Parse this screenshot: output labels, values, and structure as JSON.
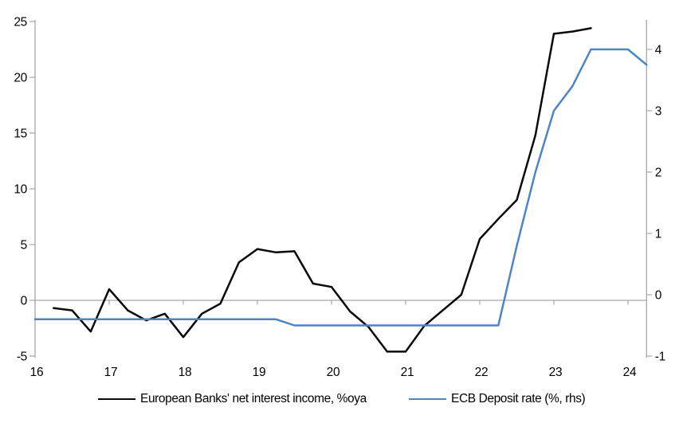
{
  "chart_data": {
    "type": "line",
    "title": "",
    "x_axis": {
      "ticks": [
        16,
        17,
        18,
        19,
        20,
        21,
        22,
        23,
        24
      ],
      "range": [
        16,
        24.25
      ]
    },
    "left_axis": {
      "ticks": [
        25,
        20,
        15,
        10,
        5,
        0,
        -5
      ],
      "range": [
        -5,
        25
      ]
    },
    "right_axis": {
      "ticks": [
        4,
        3,
        2,
        1,
        0,
        -1
      ],
      "range": [
        -1,
        4.45
      ]
    },
    "grid": "zero-line-only",
    "legend_position": "bottom",
    "series": [
      {
        "name": "European Banks' net interest income, %oya",
        "axis": "left",
        "color": "#0a0a0a",
        "x": [
          16.25,
          16.5,
          16.75,
          17.0,
          17.25,
          17.5,
          17.75,
          18.0,
          18.25,
          18.5,
          18.75,
          19.0,
          19.25,
          19.5,
          19.75,
          20.0,
          20.25,
          20.5,
          20.75,
          21.0,
          21.25,
          21.5,
          21.75,
          22.0,
          22.25,
          22.5,
          22.75,
          23.0,
          23.25,
          23.5
        ],
        "values": [
          -0.7,
          -0.9,
          -2.8,
          1.0,
          -0.9,
          -1.8,
          -1.2,
          -3.3,
          -1.2,
          -0.3,
          3.4,
          4.6,
          4.3,
          4.4,
          1.5,
          1.2,
          -1.0,
          -2.4,
          -4.6,
          -4.6,
          -2.3,
          -0.9,
          0.5,
          5.5,
          7.3,
          9.0,
          14.8,
          23.9,
          24.1,
          24.4
        ]
      },
      {
        "name": "ECB Deposit rate (%, rhs)",
        "axis": "right",
        "color": "#4d84c4",
        "x": [
          16.0,
          16.25,
          16.5,
          16.75,
          17.0,
          17.25,
          17.5,
          17.75,
          18.0,
          18.25,
          18.5,
          18.75,
          19.0,
          19.25,
          19.5,
          19.75,
          20.0,
          20.25,
          20.5,
          20.75,
          21.0,
          21.25,
          21.5,
          21.75,
          22.0,
          22.25,
          22.5,
          22.75,
          23.0,
          23.25,
          23.5,
          23.75,
          24.0,
          24.25
        ],
        "values": [
          -0.4,
          -0.4,
          -0.4,
          -0.4,
          -0.4,
          -0.4,
          -0.4,
          -0.4,
          -0.4,
          -0.4,
          -0.4,
          -0.4,
          -0.4,
          -0.4,
          -0.5,
          -0.5,
          -0.5,
          -0.5,
          -0.5,
          -0.5,
          -0.5,
          -0.5,
          -0.5,
          -0.5,
          -0.5,
          -0.5,
          0.8,
          2.0,
          3.0,
          3.4,
          4.0,
          4.0,
          4.0,
          3.75
        ]
      }
    ]
  },
  "colors": {
    "axis_gray": "#a6a6a6",
    "background": "#ffffff",
    "black_series": "#0a0a0a",
    "blue_series": "#4d84c4"
  }
}
